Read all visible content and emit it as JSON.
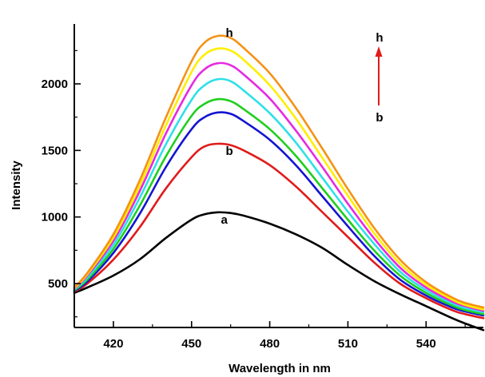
{
  "chart_data": {
    "type": "line",
    "title": "",
    "xlabel": "Wavelength in nm",
    "ylabel": "Intensity",
    "xlim": [
      405,
      562
    ],
    "ylim": [
      170,
      2450
    ],
    "xticks": [
      420,
      450,
      480,
      510,
      540
    ],
    "yticks": [
      500,
      1000,
      1500,
      2000
    ],
    "grid": false,
    "legend": "none",
    "series": [
      {
        "color": "#000000",
        "label": "a",
        "label_at": [
          461,
          980
        ],
        "x": [
          405,
          410,
          420,
          430,
          440,
          450,
          455,
          460,
          465,
          470,
          480,
          490,
          500,
          510,
          520,
          530,
          540,
          550,
          555,
          562
        ],
        "y": [
          430,
          470,
          560,
          680,
          840,
          980,
          1020,
          1035,
          1030,
          1010,
          950,
          870,
          770,
          640,
          520,
          420,
          330,
          240,
          200,
          150
        ]
      },
      {
        "color": "#e01b1b",
        "label": "b",
        "label_at": [
          463,
          1495
        ],
        "x": [
          405,
          410,
          420,
          430,
          440,
          450,
          455,
          460,
          465,
          470,
          480,
          490,
          500,
          510,
          520,
          530,
          540,
          550,
          555,
          562
        ],
        "y": [
          440,
          500,
          680,
          920,
          1210,
          1450,
          1530,
          1550,
          1540,
          1500,
          1390,
          1230,
          1040,
          850,
          660,
          500,
          390,
          300,
          270,
          240
        ]
      },
      {
        "color": "#1414d2",
        "label": "",
        "label_at": null,
        "x": [
          405,
          410,
          420,
          430,
          440,
          450,
          455,
          460,
          465,
          470,
          480,
          490,
          500,
          510,
          520,
          530,
          540,
          550,
          555,
          562
        ],
        "y": [
          445,
          515,
          730,
          1020,
          1370,
          1660,
          1750,
          1785,
          1775,
          1720,
          1580,
          1390,
          1160,
          930,
          710,
          530,
          410,
          320,
          290,
          260
        ]
      },
      {
        "color": "#1fcf1f",
        "label": "",
        "label_at": null,
        "x": [
          405,
          410,
          420,
          430,
          440,
          450,
          455,
          460,
          465,
          470,
          480,
          490,
          500,
          510,
          520,
          530,
          540,
          550,
          555,
          562
        ],
        "y": [
          450,
          530,
          760,
          1080,
          1450,
          1760,
          1850,
          1885,
          1870,
          1810,
          1660,
          1460,
          1220,
          980,
          750,
          560,
          430,
          335,
          300,
          270
        ]
      },
      {
        "color": "#2ee0e8",
        "label": "",
        "label_at": null,
        "x": [
          405,
          410,
          420,
          430,
          440,
          450,
          455,
          460,
          465,
          470,
          480,
          490,
          500,
          510,
          520,
          530,
          540,
          550,
          555,
          562
        ],
        "y": [
          455,
          545,
          790,
          1140,
          1540,
          1880,
          1990,
          2035,
          2020,
          1950,
          1780,
          1560,
          1300,
          1040,
          800,
          590,
          450,
          350,
          315,
          285
        ]
      },
      {
        "color": "#e62ae0",
        "label": "",
        "label_at": null,
        "x": [
          405,
          410,
          420,
          430,
          440,
          450,
          455,
          460,
          465,
          470,
          480,
          490,
          500,
          510,
          520,
          530,
          540,
          550,
          555,
          562
        ],
        "y": [
          460,
          560,
          820,
          1190,
          1620,
          1990,
          2110,
          2155,
          2140,
          2070,
          1890,
          1650,
          1380,
          1100,
          840,
          620,
          470,
          365,
          330,
          295
        ]
      },
      {
        "color": "#ffee00",
        "label": "",
        "label_at": null,
        "x": [
          405,
          410,
          420,
          430,
          440,
          450,
          455,
          460,
          465,
          470,
          480,
          490,
          500,
          510,
          520,
          530,
          540,
          550,
          555,
          562
        ],
        "y": [
          465,
          570,
          845,
          1230,
          1680,
          2090,
          2220,
          2265,
          2250,
          2180,
          1990,
          1740,
          1450,
          1160,
          880,
          650,
          490,
          380,
          340,
          305
        ]
      },
      {
        "color": "#f59215",
        "label": "h",
        "label_at": [
          463,
          2385
        ],
        "x": [
          405,
          410,
          420,
          430,
          440,
          450,
          455,
          460,
          465,
          470,
          480,
          490,
          500,
          510,
          520,
          530,
          540,
          550,
          555,
          562
        ],
        "y": [
          470,
          580,
          870,
          1270,
          1740,
          2170,
          2310,
          2360,
          2345,
          2270,
          2080,
          1820,
          1520,
          1210,
          920,
          680,
          510,
          395,
          355,
          320
        ]
      }
    ],
    "annotation": {
      "arrow_color": "#e01b1b",
      "top_label": "h",
      "bottom_label": "b"
    }
  }
}
